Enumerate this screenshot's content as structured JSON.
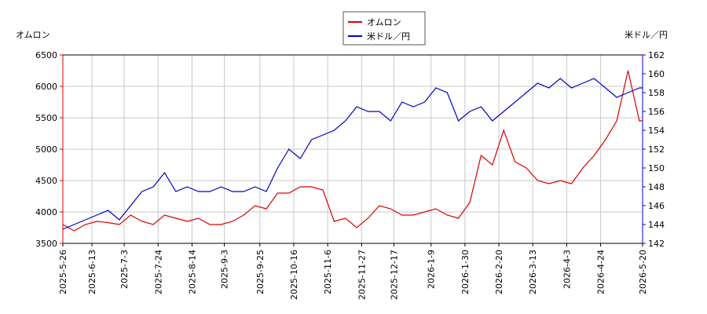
{
  "chart_data": {
    "type": "line",
    "y_label": "オムロン",
    "y2_label": "米ドル／円",
    "x": [
      "2025-5-26",
      "2025-6-2",
      "2025-6-9",
      "2025-6-16",
      "2025-6-23",
      "2025-6-30",
      "2025-7-7",
      "2025-7-14",
      "2025-7-21",
      "2025-7-28",
      "2025-8-4",
      "2025-8-11",
      "2025-8-18",
      "2025-8-25",
      "2025-9-1",
      "2025-9-8",
      "2025-9-15",
      "2025-9-22",
      "2025-9-29",
      "2025-10-6",
      "2025-10-13",
      "2025-10-20",
      "2025-10-27",
      "2025-11-3",
      "2025-11-10",
      "2025-11-17",
      "2025-11-24",
      "2025-12-1",
      "2025-12-8",
      "2025-12-15",
      "2025-12-22",
      "2025-12-29",
      "2026-1-5",
      "2026-1-12",
      "2026-1-19",
      "2026-1-26",
      "2026-2-2",
      "2026-2-9",
      "2026-2-16",
      "2026-2-23",
      "2026-3-2",
      "2026-3-9",
      "2026-3-16",
      "2026-3-23",
      "2026-3-30",
      "2026-4-6",
      "2026-4-13",
      "2026-4-20",
      "2026-4-27",
      "2026-5-4",
      "2026-5-11",
      "2026-5-18",
      "2026-5-20"
    ],
    "series": [
      {
        "name": "オムロン",
        "color": "#dd0000",
        "axis": "y",
        "values": [
          3800,
          3700,
          3800,
          3850,
          3830,
          3800,
          3950,
          3850,
          3800,
          3950,
          3900,
          3850,
          3900,
          3800,
          3800,
          3850,
          3950,
          4100,
          4050,
          4300,
          4300,
          4400,
          4400,
          4350,
          3850,
          3900,
          3750,
          3900,
          4100,
          4050,
          3950,
          3950,
          4000,
          4050,
          3950,
          3900,
          4150,
          4900,
          4750,
          5300,
          4800,
          4700,
          4500,
          4450,
          4500,
          4450,
          4700,
          4900,
          5150,
          5450,
          6250,
          5450,
          5450
        ]
      },
      {
        "name": "米ドル／円",
        "color": "#0000cc",
        "axis": "y2",
        "values": [
          143.5,
          144,
          144.5,
          145,
          145.5,
          144.5,
          146,
          147.5,
          148,
          149.5,
          147.5,
          148,
          147.5,
          147.5,
          148,
          147.5,
          147.5,
          148,
          147.5,
          150,
          152,
          151,
          153,
          153.5,
          154,
          155,
          156.5,
          156,
          156,
          155,
          157,
          156.5,
          157,
          158.5,
          158,
          155,
          156,
          156.5,
          155,
          156,
          157,
          158,
          159,
          158.5,
          159.5,
          158.5,
          159,
          159.5,
          158.5,
          157.5,
          158,
          158.5,
          158.5
        ]
      }
    ],
    "xlim": [
      "2025-5-26",
      "2026-5-20"
    ],
    "xticks": [
      "2025-5-26",
      "2025-6-13",
      "2025-7-3",
      "2025-7-24",
      "2025-8-14",
      "2025-9-3",
      "2025-9-25",
      "2025-10-16",
      "2025-11-6",
      "2025-11-27",
      "2025-12-17",
      "2026-1-9",
      "2026-1-30",
      "2026-2-20",
      "2026-3-13",
      "2026-4-3",
      "2026-4-24",
      "2026-5-20"
    ],
    "ylim": [
      3500,
      6500
    ],
    "yticks": [
      3500,
      4000,
      4500,
      5000,
      5500,
      6000,
      6500
    ],
    "y2lim": [
      142,
      162
    ],
    "y2ticks": [
      142,
      144,
      146,
      148,
      150,
      152,
      154,
      156,
      158,
      160,
      162
    ],
    "grid": true
  }
}
